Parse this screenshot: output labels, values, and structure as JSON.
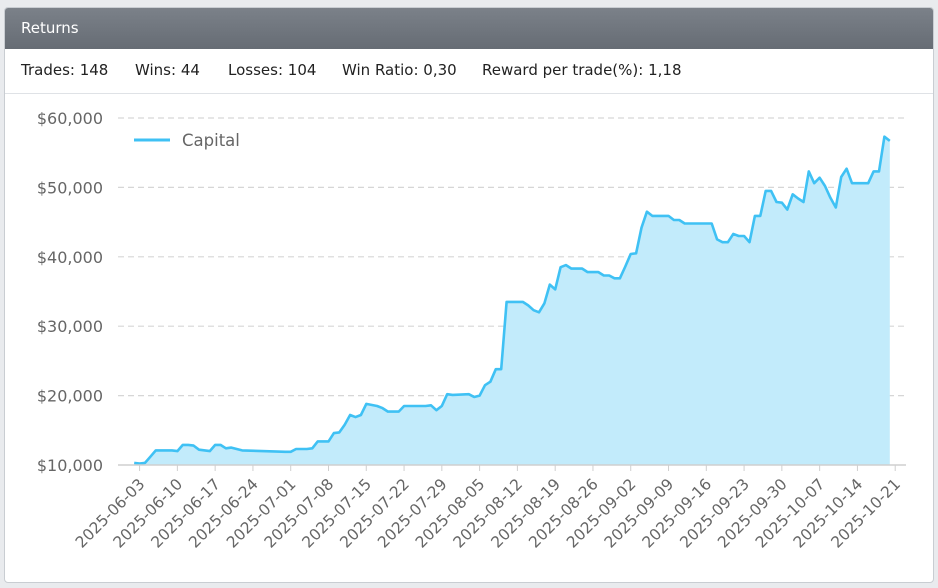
{
  "panel": {
    "title": "Returns"
  },
  "stats": [
    {
      "label": "Trades:",
      "value": "148"
    },
    {
      "label": "Wins:",
      "value": "44"
    },
    {
      "label": "Losses:",
      "value": "104"
    },
    {
      "label": "Win Ratio:",
      "value": "0,30"
    },
    {
      "label": "Reward per trade(%):",
      "value": "1,18"
    }
  ],
  "colors": {
    "line": "#3fc1f4",
    "area": "#c2ebfb",
    "grid": "#d6d6d6",
    "header": "#6f757d"
  },
  "chart_data": {
    "type": "area",
    "title": "",
    "xlabel": "",
    "ylabel": "",
    "ylim": [
      10000,
      60000
    ],
    "xlim": [
      "2025-05-30",
      "2025-10-23"
    ],
    "yticks": [
      10000,
      20000,
      30000,
      40000,
      50000,
      60000
    ],
    "ytick_labels": [
      "$10,000",
      "$20,000",
      "$30,000",
      "$40,000",
      "$50,000",
      "$60,000"
    ],
    "xticks": [
      "2025-06-03",
      "2025-06-10",
      "2025-06-17",
      "2025-06-24",
      "2025-07-01",
      "2025-07-08",
      "2025-07-15",
      "2025-07-22",
      "2025-07-29",
      "2025-08-05",
      "2025-08-12",
      "2025-08-19",
      "2025-08-26",
      "2025-09-02",
      "2025-09-09",
      "2025-09-16",
      "2025-09-23",
      "2025-09-30",
      "2025-10-07",
      "2025-10-14",
      "2025-10-21"
    ],
    "grid": true,
    "legend_position": "top-left",
    "series": [
      {
        "name": "Capital",
        "points": [
          [
            "2025-06-02",
            10300
          ],
          [
            "2025-06-03",
            10200
          ],
          [
            "2025-06-04",
            10300
          ],
          [
            "2025-06-05",
            11200
          ],
          [
            "2025-06-06",
            12100
          ],
          [
            "2025-06-09",
            12100
          ],
          [
            "2025-06-10",
            12000
          ],
          [
            "2025-06-11",
            12900
          ],
          [
            "2025-06-12",
            12900
          ],
          [
            "2025-06-13",
            12800
          ],
          [
            "2025-06-14",
            12200
          ],
          [
            "2025-06-16",
            12000
          ],
          [
            "2025-06-17",
            12900
          ],
          [
            "2025-06-18",
            12900
          ],
          [
            "2025-06-19",
            12400
          ],
          [
            "2025-06-20",
            12500
          ],
          [
            "2025-06-21",
            12300
          ],
          [
            "2025-06-22",
            12100
          ],
          [
            "2025-06-30",
            11900
          ],
          [
            "2025-07-01",
            11900
          ],
          [
            "2025-07-02",
            12300
          ],
          [
            "2025-07-04",
            12300
          ],
          [
            "2025-07-05",
            12400
          ],
          [
            "2025-07-06",
            13400
          ],
          [
            "2025-07-08",
            13400
          ],
          [
            "2025-07-09",
            14600
          ],
          [
            "2025-07-10",
            14700
          ],
          [
            "2025-07-11",
            15800
          ],
          [
            "2025-07-12",
            17200
          ],
          [
            "2025-07-13",
            16900
          ],
          [
            "2025-07-14",
            17200
          ],
          [
            "2025-07-15",
            18800
          ],
          [
            "2025-07-17",
            18500
          ],
          [
            "2025-07-18",
            18200
          ],
          [
            "2025-07-19",
            17700
          ],
          [
            "2025-07-21",
            17700
          ],
          [
            "2025-07-22",
            18500
          ],
          [
            "2025-07-26",
            18500
          ],
          [
            "2025-07-27",
            18600
          ],
          [
            "2025-07-28",
            17900
          ],
          [
            "2025-07-29",
            18500
          ],
          [
            "2025-07-30",
            20200
          ],
          [
            "2025-07-31",
            20100
          ],
          [
            "2025-08-03",
            20200
          ],
          [
            "2025-08-04",
            19800
          ],
          [
            "2025-08-05",
            20000
          ],
          [
            "2025-08-06",
            21500
          ],
          [
            "2025-08-07",
            22000
          ],
          [
            "2025-08-08",
            23800
          ],
          [
            "2025-08-09",
            23800
          ],
          [
            "2025-08-10",
            33500
          ],
          [
            "2025-08-13",
            33500
          ],
          [
            "2025-08-14",
            33000
          ],
          [
            "2025-08-15",
            32300
          ],
          [
            "2025-08-16",
            32000
          ],
          [
            "2025-08-17",
            33300
          ],
          [
            "2025-08-18",
            36000
          ],
          [
            "2025-08-19",
            35300
          ],
          [
            "2025-08-20",
            38500
          ],
          [
            "2025-08-21",
            38800
          ],
          [
            "2025-08-22",
            38300
          ],
          [
            "2025-08-24",
            38300
          ],
          [
            "2025-08-25",
            37800
          ],
          [
            "2025-08-27",
            37800
          ],
          [
            "2025-08-28",
            37300
          ],
          [
            "2025-08-29",
            37300
          ],
          [
            "2025-08-30",
            36900
          ],
          [
            "2025-08-31",
            36900
          ],
          [
            "2025-09-01",
            38600
          ],
          [
            "2025-09-02",
            40400
          ],
          [
            "2025-09-03",
            40500
          ],
          [
            "2025-09-04",
            44200
          ],
          [
            "2025-09-05",
            46500
          ],
          [
            "2025-09-06",
            45900
          ],
          [
            "2025-09-09",
            45900
          ],
          [
            "2025-09-10",
            45300
          ],
          [
            "2025-09-11",
            45300
          ],
          [
            "2025-09-12",
            44800
          ],
          [
            "2025-09-17",
            44800
          ],
          [
            "2025-09-18",
            42500
          ],
          [
            "2025-09-19",
            42100
          ],
          [
            "2025-09-20",
            42100
          ],
          [
            "2025-09-21",
            43300
          ],
          [
            "2025-09-22",
            43000
          ],
          [
            "2025-09-23",
            43000
          ],
          [
            "2025-09-24",
            42100
          ],
          [
            "2025-09-25",
            45900
          ],
          [
            "2025-09-26",
            45900
          ],
          [
            "2025-09-27",
            49500
          ],
          [
            "2025-09-28",
            49500
          ],
          [
            "2025-09-29",
            47900
          ],
          [
            "2025-09-30",
            47800
          ],
          [
            "2025-10-01",
            46800
          ],
          [
            "2025-10-02",
            49000
          ],
          [
            "2025-10-03",
            48400
          ],
          [
            "2025-10-04",
            47900
          ],
          [
            "2025-10-05",
            52300
          ],
          [
            "2025-10-06",
            50600
          ],
          [
            "2025-10-07",
            51400
          ],
          [
            "2025-10-08",
            50200
          ],
          [
            "2025-10-09",
            48500
          ],
          [
            "2025-10-10",
            47100
          ],
          [
            "2025-10-11",
            51500
          ],
          [
            "2025-10-12",
            52700
          ],
          [
            "2025-10-13",
            50600
          ],
          [
            "2025-10-16",
            50600
          ],
          [
            "2025-10-17",
            52300
          ],
          [
            "2025-10-18",
            52300
          ],
          [
            "2025-10-19",
            57300
          ],
          [
            "2025-10-20",
            56700
          ]
        ]
      }
    ]
  }
}
